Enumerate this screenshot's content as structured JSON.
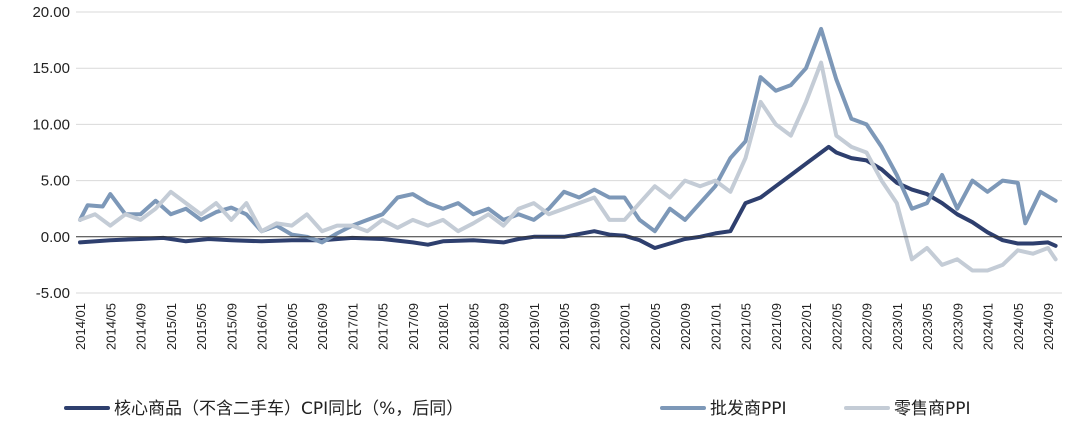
{
  "chart_data": {
    "type": "line",
    "ylim": [
      -5,
      20
    ],
    "y_ticks": [
      "-5.00",
      "0.00",
      "5.00",
      "10.00",
      "15.00",
      "20.00"
    ],
    "y_tick_values": [
      -5,
      0,
      5,
      10,
      15,
      20
    ],
    "x_tick_labels": [
      "2014/01",
      "2014/05",
      "2014/09",
      "2015/01",
      "2015/05",
      "2015/09",
      "2016/01",
      "2016/05",
      "2016/09",
      "2017/01",
      "2017/05",
      "2017/09",
      "2018/01",
      "2018/05",
      "2018/09",
      "2019/01",
      "2019/05",
      "2019/09",
      "2020/01",
      "2020/05",
      "2020/09",
      "2021/01",
      "2021/05",
      "2021/09",
      "2022/01",
      "2022/05",
      "2022/09",
      "2023/01",
      "2023/05",
      "2023/09",
      "2024/01",
      "2024/05",
      "2024/09"
    ],
    "x_start": "2014/01",
    "grid": "horizontal",
    "legend_position": "bottom",
    "series": [
      {
        "name": "核心商品（不含二手车）CPI同比（%，后同）",
        "color": "#2e3f6e",
        "points": [
          [
            "2014/01",
            -0.5
          ],
          [
            "2014/05",
            -0.3
          ],
          [
            "2014/09",
            -0.2
          ],
          [
            "2014/12",
            -0.1
          ],
          [
            "2015/01",
            -0.2
          ],
          [
            "2015/03",
            -0.4
          ],
          [
            "2015/06",
            -0.2
          ],
          [
            "2015/09",
            -0.3
          ],
          [
            "2016/01",
            -0.4
          ],
          [
            "2016/05",
            -0.3
          ],
          [
            "2016/09",
            -0.3
          ],
          [
            "2017/01",
            -0.1
          ],
          [
            "2017/05",
            -0.2
          ],
          [
            "2017/09",
            -0.5
          ],
          [
            "2017/11",
            -0.7
          ],
          [
            "2018/01",
            -0.4
          ],
          [
            "2018/05",
            -0.3
          ],
          [
            "2018/09",
            -0.5
          ],
          [
            "2018/11",
            -0.2
          ],
          [
            "2019/01",
            0
          ],
          [
            "2019/05",
            0
          ],
          [
            "2019/09",
            0.5
          ],
          [
            "2019/11",
            0.2
          ],
          [
            "2020/01",
            0.1
          ],
          [
            "2020/03",
            -0.3
          ],
          [
            "2020/05",
            -1.0
          ],
          [
            "2020/07",
            -0.6
          ],
          [
            "2020/09",
            -0.2
          ],
          [
            "2020/11",
            0
          ],
          [
            "2021/01",
            0.3
          ],
          [
            "2021/03",
            0.5
          ],
          [
            "2021/05",
            3.0
          ],
          [
            "2021/07",
            3.5
          ],
          [
            "2021/09",
            4.5
          ],
          [
            "2021/11",
            5.5
          ],
          [
            "2022/01",
            6.5
          ],
          [
            "2022/03",
            7.5
          ],
          [
            "2022/04",
            8.0
          ],
          [
            "2022/05",
            7.5
          ],
          [
            "2022/07",
            7.0
          ],
          [
            "2022/09",
            6.8
          ],
          [
            "2022/11",
            6.0
          ],
          [
            "2023/01",
            4.8
          ],
          [
            "2023/03",
            4.2
          ],
          [
            "2023/05",
            3.8
          ],
          [
            "2023/07",
            3.0
          ],
          [
            "2023/09",
            2.0
          ],
          [
            "2023/11",
            1.3
          ],
          [
            "2024/01",
            0.4
          ],
          [
            "2024/03",
            -0.3
          ],
          [
            "2024/05",
            -0.6
          ],
          [
            "2024/07",
            -0.6
          ],
          [
            "2024/09",
            -0.5
          ],
          [
            "2024/10",
            -0.8
          ]
        ]
      },
      {
        "name": "批发商PPI",
        "color": "#7d98b8",
        "points": [
          [
            "2014/01",
            1.5
          ],
          [
            "2014/02",
            2.8
          ],
          [
            "2014/04",
            2.7
          ],
          [
            "2014/05",
            3.8
          ],
          [
            "2014/07",
            2.0
          ],
          [
            "2014/09",
            2.0
          ],
          [
            "2014/11",
            3.2
          ],
          [
            "2015/01",
            2.0
          ],
          [
            "2015/03",
            2.5
          ],
          [
            "2015/05",
            1.5
          ],
          [
            "2015/07",
            2.2
          ],
          [
            "2015/09",
            2.6
          ],
          [
            "2015/11",
            2.0
          ],
          [
            "2016/01",
            0.5
          ],
          [
            "2016/03",
            1.0
          ],
          [
            "2016/05",
            0.2
          ],
          [
            "2016/07",
            0
          ],
          [
            "2016/09",
            -0.5
          ],
          [
            "2016/11",
            0.3
          ],
          [
            "2017/01",
            1.0
          ],
          [
            "2017/03",
            1.5
          ],
          [
            "2017/05",
            2.0
          ],
          [
            "2017/07",
            3.5
          ],
          [
            "2017/09",
            3.8
          ],
          [
            "2017/11",
            3.0
          ],
          [
            "2018/01",
            2.5
          ],
          [
            "2018/03",
            3.0
          ],
          [
            "2018/05",
            2.0
          ],
          [
            "2018/07",
            2.5
          ],
          [
            "2018/09",
            1.5
          ],
          [
            "2018/11",
            2.0
          ],
          [
            "2019/01",
            1.5
          ],
          [
            "2019/03",
            2.5
          ],
          [
            "2019/05",
            4.0
          ],
          [
            "2019/07",
            3.5
          ],
          [
            "2019/09",
            4.2
          ],
          [
            "2019/11",
            3.5
          ],
          [
            "2020/01",
            3.5
          ],
          [
            "2020/03",
            1.5
          ],
          [
            "2020/05",
            0.5
          ],
          [
            "2020/07",
            2.5
          ],
          [
            "2020/09",
            1.5
          ],
          [
            "2020/11",
            3.0
          ],
          [
            "2021/01",
            4.5
          ],
          [
            "2021/03",
            7.0
          ],
          [
            "2021/05",
            8.5
          ],
          [
            "2021/07",
            14.2
          ],
          [
            "2021/09",
            13.0
          ],
          [
            "2021/11",
            13.5
          ],
          [
            "2022/01",
            15.0
          ],
          [
            "2022/03",
            18.5
          ],
          [
            "2022/05",
            14.0
          ],
          [
            "2022/07",
            10.5
          ],
          [
            "2022/09",
            10.0
          ],
          [
            "2022/11",
            8.0
          ],
          [
            "2023/01",
            5.5
          ],
          [
            "2023/03",
            2.5
          ],
          [
            "2023/05",
            3.0
          ],
          [
            "2023/07",
            5.5
          ],
          [
            "2023/09",
            2.5
          ],
          [
            "2023/11",
            5.0
          ],
          [
            "2024/01",
            4.0
          ],
          [
            "2024/03",
            5.0
          ],
          [
            "2024/05",
            4.8
          ],
          [
            "2024/06",
            1.2
          ],
          [
            "2024/08",
            4.0
          ],
          [
            "2024/10",
            3.2
          ]
        ]
      },
      {
        "name": "零售商PPI",
        "color": "#c4ccd6",
        "points": [
          [
            "2014/01",
            1.5
          ],
          [
            "2014/03",
            2.0
          ],
          [
            "2014/05",
            1.0
          ],
          [
            "2014/07",
            2.0
          ],
          [
            "2014/09",
            1.5
          ],
          [
            "2014/11",
            2.5
          ],
          [
            "2015/01",
            4.0
          ],
          [
            "2015/03",
            3.0
          ],
          [
            "2015/05",
            2.0
          ],
          [
            "2015/07",
            3.0
          ],
          [
            "2015/09",
            1.5
          ],
          [
            "2015/11",
            3.0
          ],
          [
            "2016/01",
            0.5
          ],
          [
            "2016/03",
            1.2
          ],
          [
            "2016/05",
            1.0
          ],
          [
            "2016/07",
            2.0
          ],
          [
            "2016/09",
            0.5
          ],
          [
            "2016/11",
            1.0
          ],
          [
            "2017/01",
            1.0
          ],
          [
            "2017/03",
            0.5
          ],
          [
            "2017/05",
            1.5
          ],
          [
            "2017/07",
            0.8
          ],
          [
            "2017/09",
            1.5
          ],
          [
            "2017/11",
            1.0
          ],
          [
            "2018/01",
            1.5
          ],
          [
            "2018/03",
            0.5
          ],
          [
            "2018/05",
            1.2
          ],
          [
            "2018/07",
            2.0
          ],
          [
            "2018/09",
            1.0
          ],
          [
            "2018/11",
            2.5
          ],
          [
            "2019/01",
            3.0
          ],
          [
            "2019/03",
            2.0
          ],
          [
            "2019/05",
            2.5
          ],
          [
            "2019/07",
            3.0
          ],
          [
            "2019/09",
            3.5
          ],
          [
            "2019/11",
            1.5
          ],
          [
            "2020/01",
            1.5
          ],
          [
            "2020/03",
            3.0
          ],
          [
            "2020/05",
            4.5
          ],
          [
            "2020/07",
            3.5
          ],
          [
            "2020/09",
            5.0
          ],
          [
            "2020/11",
            4.5
          ],
          [
            "2021/01",
            5.0
          ],
          [
            "2021/03",
            4.0
          ],
          [
            "2021/05",
            7.0
          ],
          [
            "2021/07",
            12.0
          ],
          [
            "2021/09",
            10.0
          ],
          [
            "2021/11",
            9.0
          ],
          [
            "2022/01",
            12.0
          ],
          [
            "2022/03",
            15.5
          ],
          [
            "2022/05",
            9.0
          ],
          [
            "2022/07",
            8.0
          ],
          [
            "2022/09",
            7.5
          ],
          [
            "2022/11",
            5.0
          ],
          [
            "2023/01",
            3.0
          ],
          [
            "2023/03",
            -2.0
          ],
          [
            "2023/05",
            -1.0
          ],
          [
            "2023/07",
            -2.5
          ],
          [
            "2023/09",
            -2.0
          ],
          [
            "2023/11",
            -3.0
          ],
          [
            "2024/01",
            -3.0
          ],
          [
            "2024/03",
            -2.5
          ],
          [
            "2024/05",
            -1.2
          ],
          [
            "2024/07",
            -1.5
          ],
          [
            "2024/09",
            -1.0
          ],
          [
            "2024/10",
            -2.0
          ]
        ]
      }
    ]
  }
}
